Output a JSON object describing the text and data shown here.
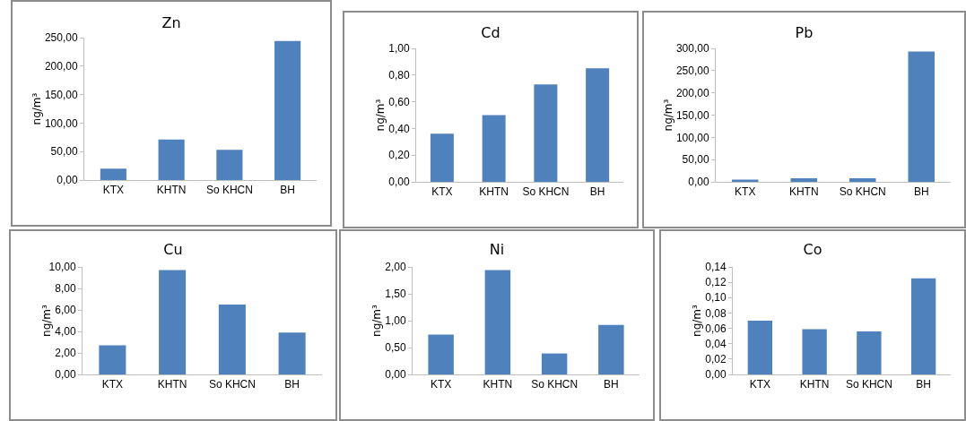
{
  "chart_data": [
    {
      "type": "bar",
      "title": "Zn",
      "ylabel": "ng/m³",
      "categories": [
        "KTX",
        "KHTN",
        "So KHCN",
        "BH"
      ],
      "values": [
        20,
        71,
        53,
        244
      ],
      "color": "#4f81bd",
      "ylim": [
        0,
        250
      ],
      "yticks": [
        {
          "value": 0,
          "label": "0,00"
        },
        {
          "value": 50,
          "label": "50,00"
        },
        {
          "value": 100,
          "label": "100,00"
        },
        {
          "value": 150,
          "label": "150,00"
        },
        {
          "value": 200,
          "label": "200,00"
        },
        {
          "value": 250,
          "label": "250,00"
        }
      ],
      "grid": false
    },
    {
      "type": "bar",
      "title": "Cd",
      "ylabel": "ng/m³",
      "categories": [
        "KTX",
        "KHTN",
        "So KHCN",
        "BH"
      ],
      "values": [
        0.36,
        0.5,
        0.73,
        0.85
      ],
      "color": "#4f81bd",
      "ylim": [
        0,
        1
      ],
      "yticks": [
        {
          "value": 0,
          "label": "0,00"
        },
        {
          "value": 0.2,
          "label": "0,20"
        },
        {
          "value": 0.4,
          "label": "0,40"
        },
        {
          "value": 0.6,
          "label": "0,60"
        },
        {
          "value": 0.8,
          "label": "0,80"
        },
        {
          "value": 1,
          "label": "1,00"
        }
      ],
      "grid": false
    },
    {
      "type": "bar",
      "title": "Pb",
      "ylabel": "ng/m³",
      "categories": [
        "KTX",
        "KHTN",
        "So KHCN",
        "BH"
      ],
      "values": [
        5,
        8,
        8,
        293
      ],
      "color": "#4f81bd",
      "ylim": [
        0,
        300
      ],
      "yticks": [
        {
          "value": 0,
          "label": "0,00"
        },
        {
          "value": 50,
          "label": "50,00"
        },
        {
          "value": 100,
          "label": "100,00"
        },
        {
          "value": 150,
          "label": "150,00"
        },
        {
          "value": 200,
          "label": "200,00"
        },
        {
          "value": 250,
          "label": "250,00"
        },
        {
          "value": 300,
          "label": "300,00"
        }
      ],
      "grid": false
    },
    {
      "type": "bar",
      "title": "Cu",
      "ylabel": "ng/m³",
      "categories": [
        "KTX",
        "KHTN",
        "So KHCN",
        "BH"
      ],
      "values": [
        2.7,
        9.7,
        6.5,
        3.9
      ],
      "color": "#4f81bd",
      "ylim": [
        0,
        10
      ],
      "yticks": [
        {
          "value": 0,
          "label": "0,00"
        },
        {
          "value": 2,
          "label": "2,00"
        },
        {
          "value": 4,
          "label": "4,00"
        },
        {
          "value": 6,
          "label": "6,00"
        },
        {
          "value": 8,
          "label": "8,00"
        },
        {
          "value": 10,
          "label": "10,00"
        }
      ],
      "grid": false
    },
    {
      "type": "bar",
      "title": "Ni",
      "ylabel": "ng/m³",
      "categories": [
        "KTX",
        "KHTN",
        "So KHCN",
        "BH"
      ],
      "values": [
        0.74,
        1.94,
        0.39,
        0.92
      ],
      "color": "#4f81bd",
      "ylim": [
        0,
        2
      ],
      "yticks": [
        {
          "value": 0,
          "label": "0,00"
        },
        {
          "value": 0.5,
          "label": "0,50"
        },
        {
          "value": 1,
          "label": "1,00"
        },
        {
          "value": 1.5,
          "label": "1,50"
        },
        {
          "value": 2,
          "label": "2,00"
        }
      ],
      "grid": false
    },
    {
      "type": "bar",
      "title": "Co",
      "ylabel": "ng/m³",
      "categories": [
        "KTX",
        "KHTN",
        "So KHCN",
        "BH"
      ],
      "values": [
        0.07,
        0.059,
        0.056,
        0.125
      ],
      "color": "#4f81bd",
      "ylim": [
        0,
        0.14
      ],
      "yticks": [
        {
          "value": 0,
          "label": "0,00"
        },
        {
          "value": 0.02,
          "label": "0,02"
        },
        {
          "value": 0.04,
          "label": "0,04"
        },
        {
          "value": 0.06,
          "label": "0,06"
        },
        {
          "value": 0.08,
          "label": "0,08"
        },
        {
          "value": 0.1,
          "label": "0,10"
        },
        {
          "value": 0.12,
          "label": "0,12"
        },
        {
          "value": 0.14,
          "label": "0,14"
        }
      ],
      "grid": false
    }
  ]
}
